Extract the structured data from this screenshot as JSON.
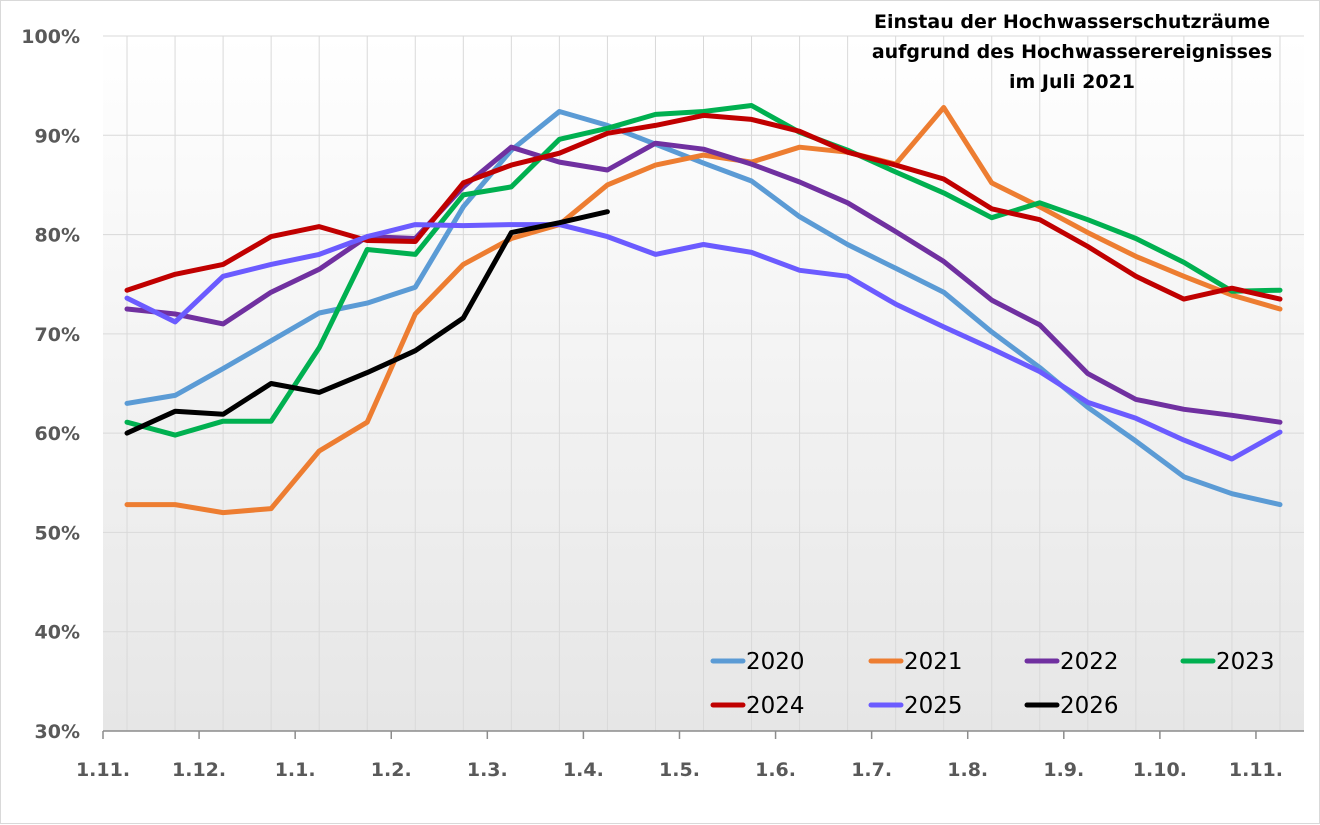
{
  "chart_data": {
    "type": "line",
    "title_lines": [
      "Einstau der Hochwasserschutzräume",
      "aufgrund des Hochwasserereignisses",
      "im Juli 2021"
    ],
    "xlabel": "",
    "ylabel": "",
    "x_tick_labels": [
      "1.11.",
      "1.12.",
      "1.1.",
      "1.2.",
      "1.3.",
      "1.4.",
      "1.5.",
      "1.6.",
      "1.7.",
      "1.8.",
      "1.9.",
      "1.10.",
      "1.11."
    ],
    "y_tick_labels": [
      "30%",
      "40%",
      "50%",
      "60%",
      "70%",
      "80%",
      "90%",
      "100%"
    ],
    "ylim": [
      30,
      100
    ],
    "x_points": 25,
    "grid": true,
    "legend_position": "bottom-right",
    "series": [
      {
        "name": "2020",
        "color": "#5B9BD5",
        "values": [
          63.0,
          63.8,
          66.5,
          69.3,
          72.1,
          73.1,
          74.7,
          82.8,
          88.5,
          92.4,
          91.0,
          89.1,
          87.2,
          85.4,
          81.8,
          79.0,
          76.6,
          74.2,
          70.2,
          66.6,
          62.6,
          59.2,
          55.6,
          53.9,
          52.8
        ]
      },
      {
        "name": "2021",
        "color": "#ED7D31",
        "values": [
          52.8,
          52.8,
          52.0,
          52.4,
          58.2,
          61.1,
          72.0,
          77.0,
          79.6,
          81.0,
          85.0,
          87.0,
          88.0,
          87.3,
          88.8,
          88.3,
          87.1,
          92.8,
          85.2,
          82.8,
          80.2,
          77.8,
          75.8,
          73.9,
          72.5
        ]
      },
      {
        "name": "2022",
        "color": "#7030A0",
        "values": [
          72.5,
          72.0,
          71.0,
          74.2,
          76.5,
          79.8,
          79.6,
          84.8,
          88.8,
          87.3,
          86.5,
          89.2,
          88.6,
          87.1,
          85.3,
          83.2,
          80.3,
          77.3,
          73.4,
          70.9,
          66.0,
          63.4,
          62.4,
          61.8,
          61.1
        ]
      },
      {
        "name": "2023",
        "color": "#00B050",
        "values": [
          61.1,
          59.8,
          61.2,
          61.2,
          68.6,
          78.5,
          78.0,
          84.0,
          84.8,
          89.6,
          90.7,
          92.1,
          92.4,
          93.0,
          90.3,
          88.5,
          86.3,
          84.2,
          81.7,
          83.2,
          81.5,
          79.6,
          77.2,
          74.3,
          74.4
        ]
      },
      {
        "name": "2024",
        "color": "#C00000",
        "values": [
          74.4,
          76.0,
          77.0,
          79.8,
          80.8,
          79.4,
          79.3,
          85.2,
          87.0,
          88.2,
          90.2,
          91.0,
          92.0,
          91.6,
          90.4,
          88.3,
          87.0,
          85.6,
          82.6,
          81.5,
          78.8,
          75.8,
          73.5,
          74.6,
          73.5
        ]
      },
      {
        "name": "2025",
        "color": "#6B5BFF",
        "values": [
          73.6,
          71.2,
          75.8,
          77.0,
          78.0,
          79.8,
          81.0,
          80.9,
          81.0,
          81.0,
          79.8,
          78.0,
          79.0,
          78.2,
          76.4,
          75.8,
          73.0,
          70.7,
          68.5,
          66.2,
          63.1,
          61.5,
          59.3,
          57.4,
          60.1
        ]
      },
      {
        "name": "2026",
        "color": "#000000",
        "values": [
          60.0,
          62.2,
          61.9,
          65.0,
          64.1,
          66.1,
          68.3,
          71.6,
          80.2,
          81.2,
          82.3
        ]
      }
    ]
  }
}
